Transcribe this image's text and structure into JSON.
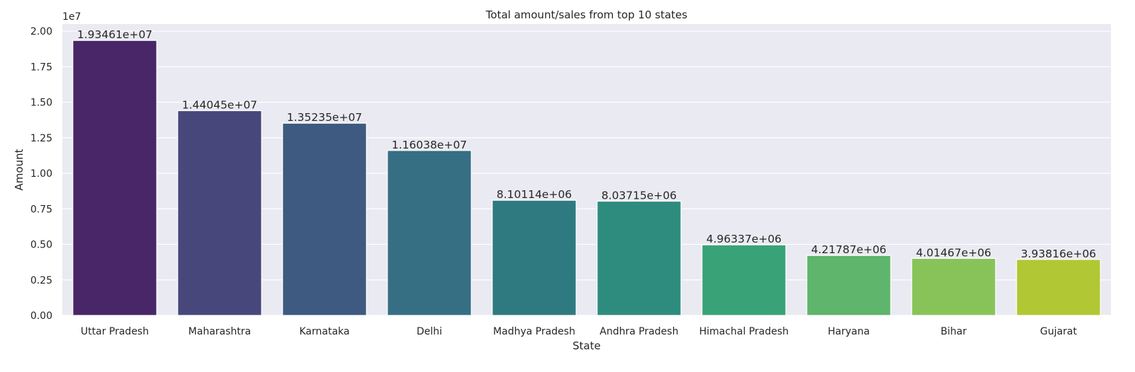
{
  "chart_data": {
    "type": "bar",
    "title": "Total amount/sales from top 10 states",
    "xlabel": "State",
    "ylabel": "Amount",
    "y_offset_label": "1e7",
    "ylim": [
      0,
      2.05
    ],
    "y_ticks": [
      0,
      0.25,
      0.5,
      0.75,
      1.0,
      1.25,
      1.5,
      1.75,
      2.0
    ],
    "y_tick_labels": [
      "0.00",
      "0.25",
      "0.50",
      "0.75",
      "1.00",
      "1.25",
      "1.50",
      "1.75",
      "2.00"
    ],
    "grid": true,
    "categories": [
      "Uttar Pradesh",
      "Maharashtra",
      "Karnataka",
      "Delhi",
      "Madhya Pradesh",
      "Andhra Pradesh",
      "Himachal Pradesh",
      "Haryana",
      "Bihar",
      "Gujarat"
    ],
    "values": [
      1.93461,
      1.44045,
      1.35235,
      1.16038,
      0.810114,
      0.803715,
      0.496337,
      0.421787,
      0.401467,
      0.393816
    ],
    "value_labels": [
      "1.93461e+07",
      "1.44045e+07",
      "1.35235e+07",
      "1.16038e+07",
      "8.10114e+06",
      "8.03715e+06",
      "4.96337e+06",
      "4.21787e+06",
      "4.01467e+06",
      "3.93816e+06"
    ],
    "colors": [
      "#482667",
      "#48477c",
      "#3e5a80",
      "#366f84",
      "#2f7a80",
      "#2e8c7f",
      "#3aa277",
      "#5eb56b",
      "#88c35a",
      "#b2c734"
    ],
    "background": "#eaeaf2"
  }
}
